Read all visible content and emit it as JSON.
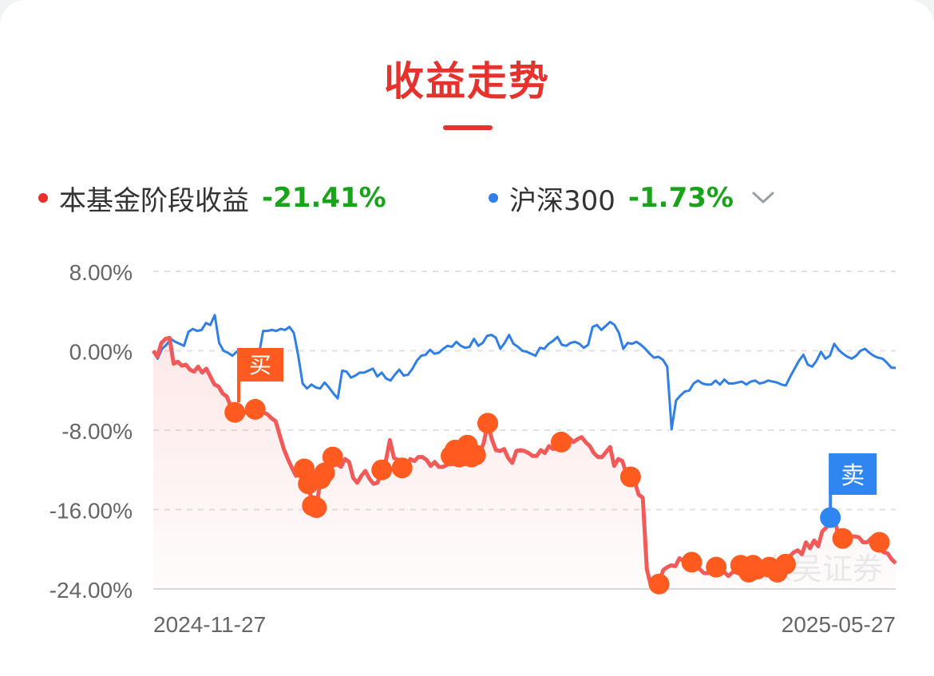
{
  "title": "收益走势",
  "colors": {
    "accent": "#e5322d",
    "fund_line": "#f25a5a",
    "index_line": "#2f7fe6",
    "positive": "#19a319",
    "marker": "#ff5a1f",
    "sell": "#2f86f0"
  },
  "legend": {
    "fund": {
      "label": "本基金阶段收益",
      "value": "-21.41%"
    },
    "index": {
      "label": "沪深300",
      "value": "-1.73%"
    }
  },
  "markers": {
    "buy_label": "买",
    "sell_label": "卖"
  },
  "watermark": "东吴证券",
  "chart_data": {
    "type": "line",
    "x_start": "2024-11-27",
    "x_end": "2025-05-27",
    "x_tick_labels": [
      "2024-11-27",
      "2025-05-27"
    ],
    "y_ticks": [
      "8.00%",
      "0.00%",
      "-8.00%",
      "-16.00%",
      "-24.00%"
    ],
    "y_tick_values": [
      8,
      0,
      -8,
      -16,
      -24
    ],
    "ylim": [
      -24,
      8
    ],
    "grid": true,
    "series": [
      {
        "name": "本基金阶段收益",
        "color": "#f25a5a",
        "x": [
          0,
          1,
          2,
          3,
          4,
          5,
          6,
          7,
          8,
          9,
          10,
          11,
          12,
          13,
          14,
          15,
          16,
          17,
          18,
          19,
          20,
          21,
          22,
          23,
          24,
          25,
          26,
          27,
          28,
          29,
          30,
          31,
          32,
          33,
          34,
          35,
          36,
          37,
          38,
          39,
          40,
          41,
          42,
          43,
          44,
          45,
          46,
          47,
          48,
          49,
          50,
          51,
          52,
          53,
          54,
          55,
          56,
          57,
          58,
          59,
          60,
          61,
          62,
          63,
          64,
          65,
          66,
          67,
          68,
          69,
          70,
          71,
          72,
          73,
          74,
          75,
          76,
          77,
          78,
          79,
          80,
          81,
          82,
          83,
          84,
          85,
          86,
          87,
          88,
          89,
          90,
          91,
          92,
          93,
          94,
          95,
          96,
          97,
          98,
          99,
          100,
          101,
          102,
          103,
          104,
          105,
          106,
          107,
          108,
          109,
          110,
          111,
          112,
          113,
          114,
          115,
          116,
          117,
          118,
          119,
          120,
          121,
          122,
          123,
          124,
          125,
          126,
          127,
          128,
          129,
          130,
          131,
          132,
          133,
          134,
          135,
          136,
          137,
          138,
          139,
          140,
          141,
          142,
          143,
          144,
          145,
          146,
          147,
          148,
          149,
          150,
          151,
          152,
          153,
          154,
          155,
          156,
          157,
          158,
          159,
          160,
          161,
          162,
          163,
          164,
          165,
          166,
          167,
          168,
          169,
          170,
          171,
          172,
          173,
          174,
          175,
          176,
          177,
          178,
          179,
          180,
          181,
          182
        ],
        "values": [
          0,
          -0.6,
          0.8,
          1.2,
          1.3,
          -1.3,
          -1.1,
          -1.5,
          -1.4,
          -1.9,
          -2.1,
          -1.6,
          -2.2,
          -1.8,
          -2.6,
          -3.4,
          -3.6,
          -4.3,
          -4.6,
          -5.6,
          -6.2,
          -5.8,
          -6.4,
          -6.0,
          -5.3,
          -5.9,
          -6.3,
          -6.2,
          -6.4,
          -6.8,
          -7.1,
          -8.5,
          -9.9,
          -10.9,
          -11.8,
          -12.6,
          -12.5,
          -11.9,
          -13.4,
          -15.6,
          -15.8,
          -12.9,
          -12.3,
          -11.2,
          -10.7,
          -11.4,
          -11.7,
          -10.9,
          -11.2,
          -12.8,
          -13.3,
          -12.6,
          -12.1,
          -12.9,
          -13.4,
          -13.3,
          -12.0,
          -11.1,
          -9.0,
          -10.8,
          -11.0,
          -11.8,
          -11.8,
          -10.9,
          -11.1,
          -10.7,
          -10.7,
          -11.0,
          -11.6,
          -11.2,
          -11.7,
          -11.7,
          -11.5,
          -10.6,
          -10.0,
          -10.7,
          -10.6,
          -9.5,
          -10.7,
          -10.5,
          -10.3,
          -9.3,
          -7.3,
          -8.9,
          -10.0,
          -10.1,
          -9.9,
          -10.8,
          -11.3,
          -10.1,
          -10.0,
          -10.1,
          -10.3,
          -10.6,
          -10.6,
          -10.0,
          -10.3,
          -9.6,
          -9.9,
          -9.7,
          -9.2,
          -8.6,
          -8.8,
          -9.2,
          -8.9,
          -8.7,
          -9.2,
          -9.6,
          -10.3,
          -10.7,
          -10.7,
          -10.2,
          -9.7,
          -11.6,
          -10.9,
          -11.1,
          -12.4,
          -12.7,
          -13.2,
          -14.5,
          -14.8,
          -22.0,
          -23.7,
          -23.9,
          -23.5,
          -22.1,
          -21.8,
          -21.6,
          -21.7,
          -20.9,
          -21.2,
          -21.9,
          -21.3,
          -21.5,
          -22.0,
          -22.4,
          -22.4,
          -21.7,
          -21.8,
          -22.1,
          -22.3,
          -22.7,
          -22.3,
          -22.3,
          -21.6,
          -21.9,
          -22.3,
          -21.6,
          -22.0,
          -22.3,
          -22.2,
          -21.8,
          -22.4,
          -22.3,
          -22.4,
          -21.5,
          -20.7,
          -20.3,
          -20.1,
          -20.5,
          -19.3,
          -19.9,
          -19.1,
          -19.7,
          -18.2,
          -17.8,
          -16.8,
          -16.9,
          -18.7,
          -18.9,
          -18.7,
          -18.7,
          -18.7,
          -18.8,
          -19.3,
          -19.3,
          -18.9,
          -19.0,
          -19.3,
          -20.3,
          -20.4,
          -21.0,
          -21.4
        ],
        "buy_points_x": [
          20,
          25,
          37,
          39,
          40,
          41,
          42,
          43,
          44,
          48,
          61,
          66,
          74,
          75,
          77,
          78,
          79,
          80,
          81,
          82,
          83,
          84,
          85,
          100,
          117,
          123,
          131,
          144,
          147,
          148,
          151,
          158,
          161,
          162,
          163,
          164,
          165,
          166,
          167,
          168,
          169,
          170,
          171,
          172,
          173,
          174,
          175,
          176,
          177,
          178,
          179,
          180,
          181,
          182,
          125,
          127,
          129,
          130,
          132,
          133,
          135,
          136,
          137,
          138,
          139,
          140,
          141,
          142,
          143,
          145,
          146,
          149,
          150,
          152,
          153,
          154,
          155,
          156,
          157,
          159,
          160
        ],
        "sell_point_x": 166
      },
      {
        "name": "沪深300",
        "color": "#2f7fe6",
        "values": [
          0,
          -0.8,
          0.2,
          0.6,
          1.2,
          0.9,
          0.7,
          0.5,
          1.9,
          2.2,
          2.0,
          2.1,
          2.8,
          2.6,
          3.6,
          0.8,
          0.0,
          -0.2,
          -0.5,
          -0.1,
          -0.1,
          -0.4,
          -0.7,
          -0.8,
          -0.5,
          2.0,
          2.0,
          2.1,
          2.0,
          2.2,
          2.1,
          2.4,
          1.8,
          -0.5,
          -3.3,
          -3.8,
          -3.4,
          -3.7,
          -3.8,
          -3.2,
          -3.7,
          -4.3,
          -4.8,
          -2.0,
          -2.1,
          -2.7,
          -2.5,
          -2.2,
          -2.2,
          -2.0,
          -1.8,
          -2.6,
          -2.2,
          -2.8,
          -3.0,
          -2.4,
          -1.9,
          -2.5,
          -2.4,
          -1.8,
          -1.0,
          -0.5,
          -0.4,
          0.1,
          -0.3,
          -0.2,
          0.2,
          0.5,
          0.4,
          0.9,
          0.5,
          0.3,
          0.4,
          1.2,
          0.5,
          0.8,
          1.5,
          1.6,
          1.3,
          0.2,
          0.8,
          1.6,
          0.7,
          0.4,
          0.0,
          -0.1,
          -0.3,
          -0.5,
          0.3,
          0.2,
          0.7,
          1.0,
          1.4,
          0.6,
          0.5,
          0.8,
          0.9,
          0.7,
          0.3,
          0.6,
          2.4,
          2.6,
          2.1,
          2.5,
          2.9,
          2.6,
          1.8,
          0.2,
          0.8,
          0.7,
          0.9,
          0.6,
          0.2,
          -0.3,
          -0.7,
          -0.6,
          -0.9,
          -1.6,
          -7.9,
          -5.0,
          -4.5,
          -4.1,
          -4.0,
          -3.3,
          -3.0,
          -3.3,
          -3.4,
          -3.4,
          -3.0,
          -3.4,
          -2.9,
          -3.3,
          -3.3,
          -3.2,
          -3.1,
          -3.4,
          -3.1,
          -3.0,
          -3.3,
          -3.2,
          -3.0,
          -3.1,
          -3.2,
          -3.4,
          -3.5,
          -2.6,
          -1.8,
          -1.0,
          -0.4,
          -1.4,
          -1.6,
          -1.0,
          -0.1,
          -0.8,
          -0.5,
          0.7,
          0.1,
          -0.3,
          -0.6,
          -0.8,
          -0.5,
          0.0,
          0.2,
          -0.2,
          -0.5,
          -0.7,
          -0.8,
          -1.2,
          -1.7,
          -1.73
        ]
      }
    ]
  }
}
